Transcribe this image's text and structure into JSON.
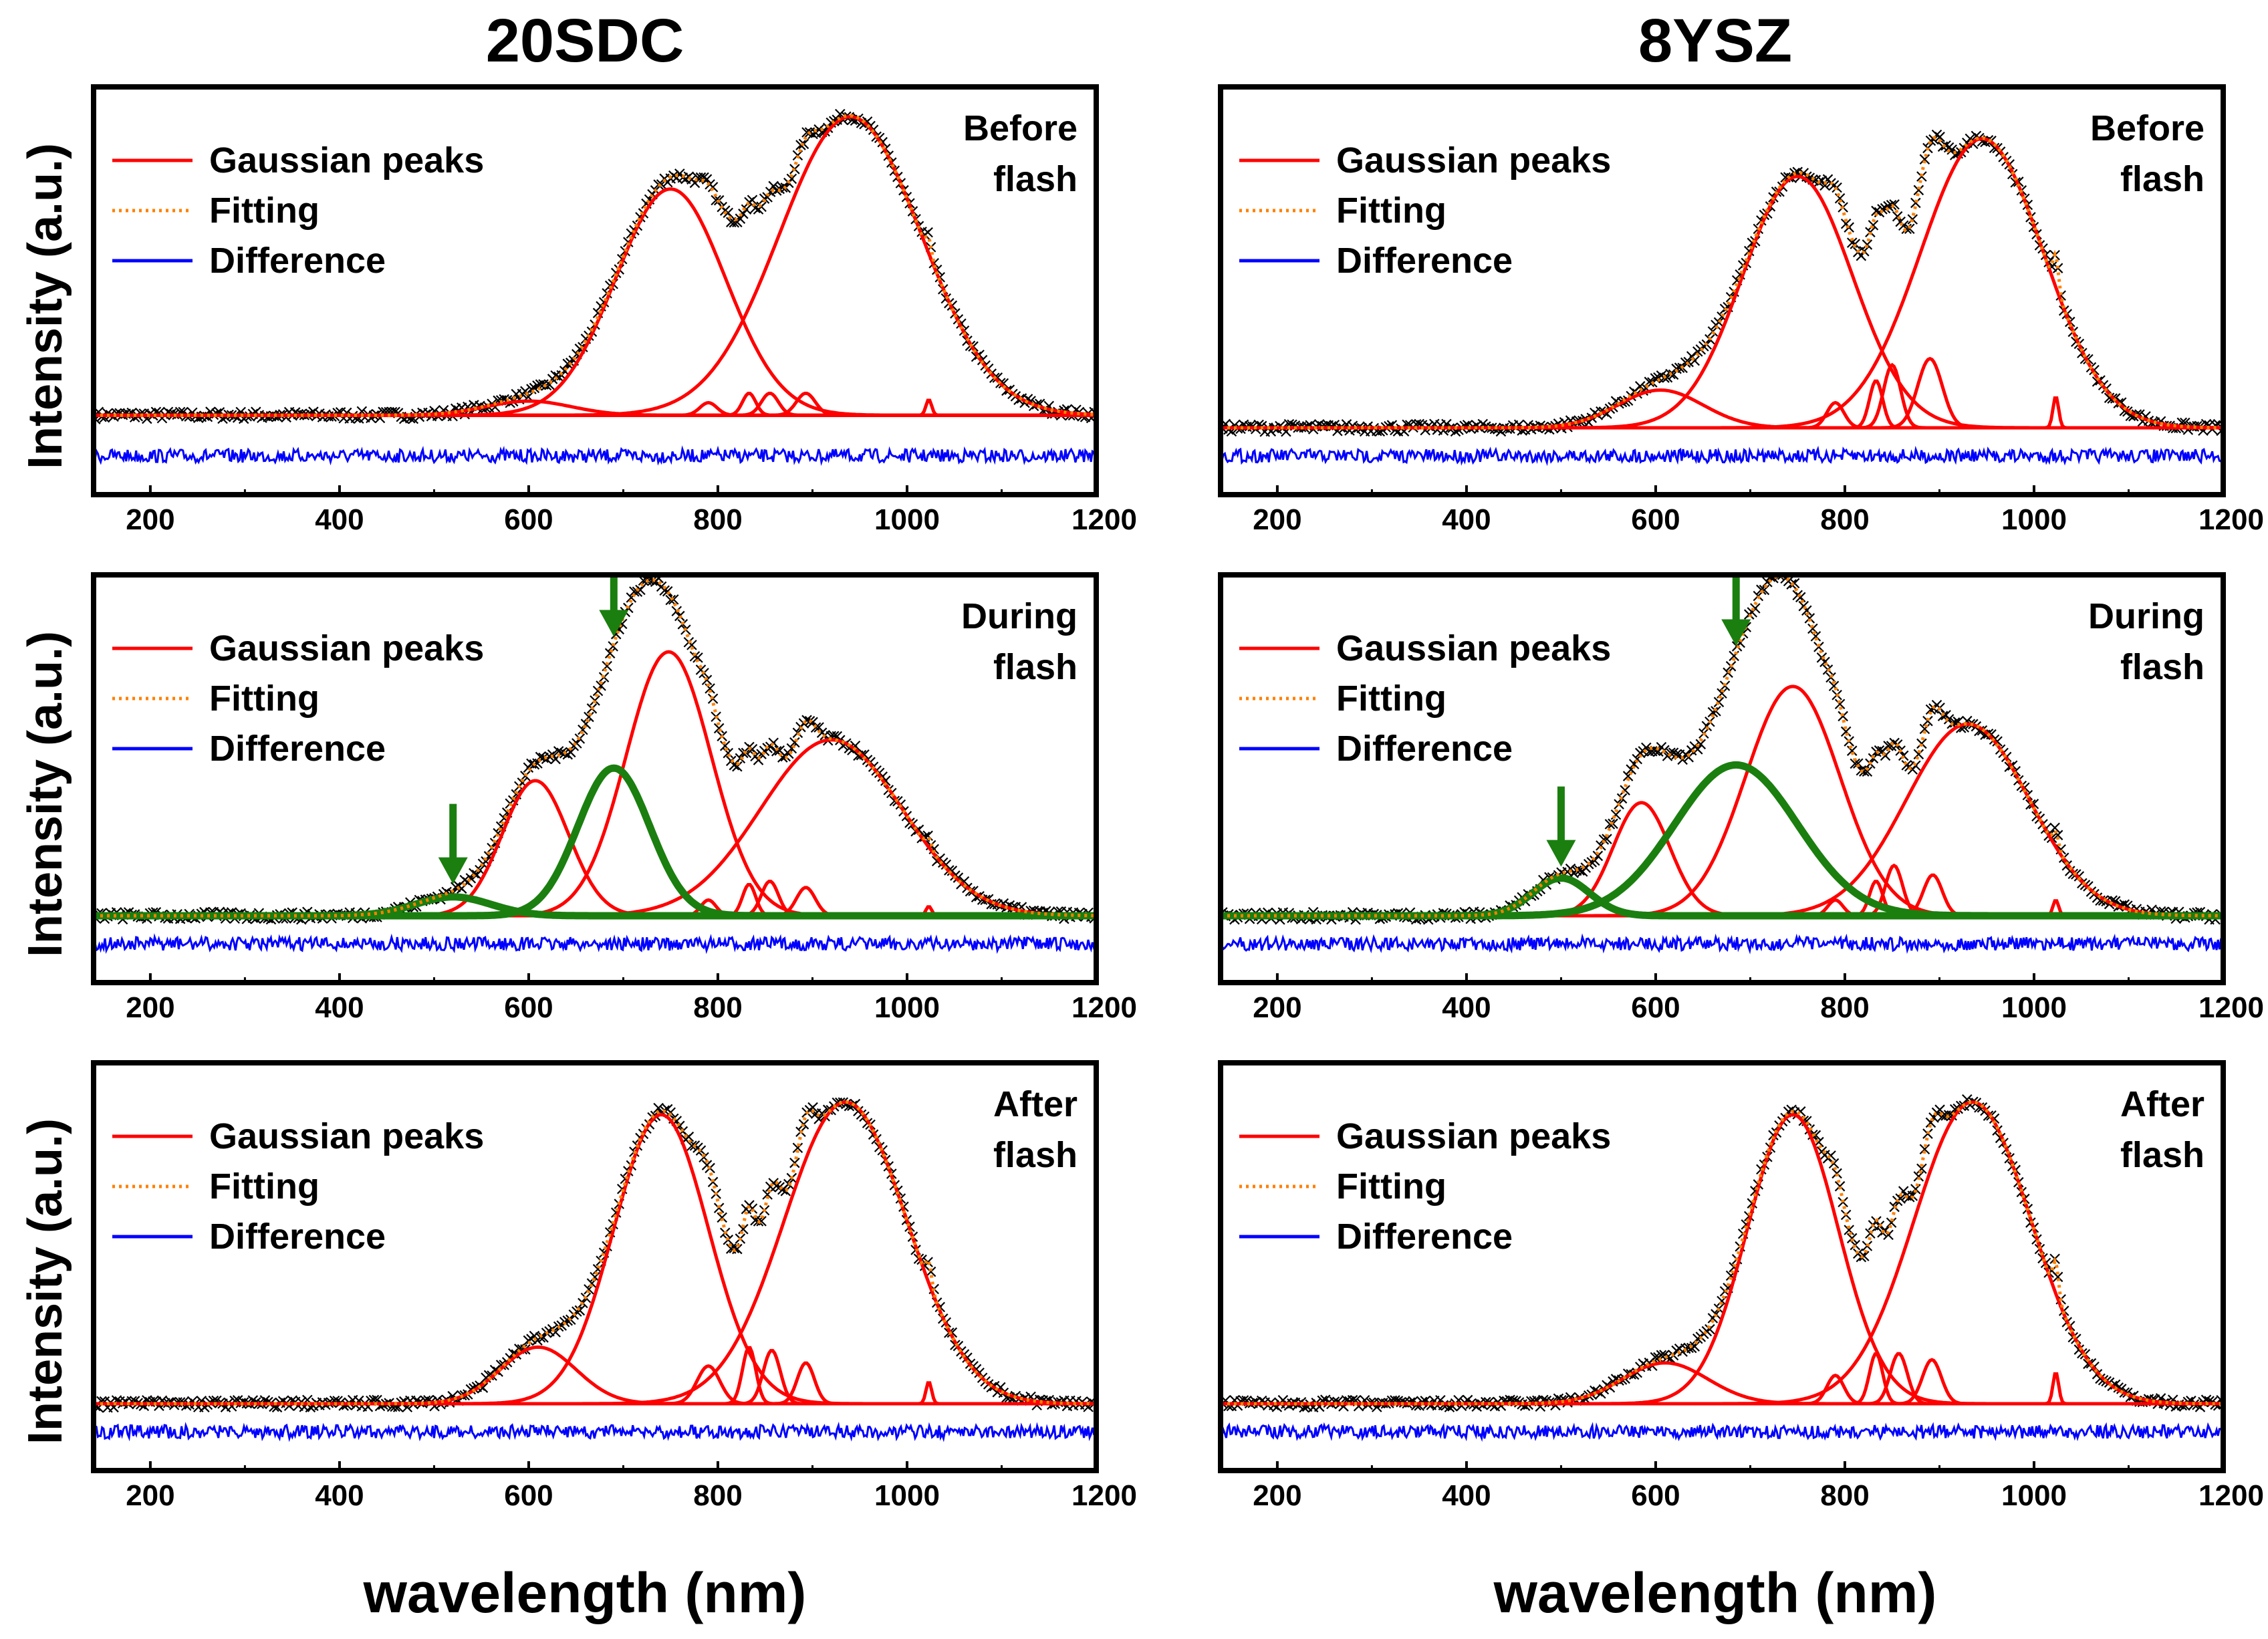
{
  "figure": {
    "column_titles": [
      "20SDC",
      "8YSZ"
    ],
    "y_axis_label": "Intensity (a.u.)",
    "x_axis_label": "wavelength (nm)"
  },
  "colors": {
    "gaussian": "#ff0000",
    "fitting": "#ff8000",
    "difference": "#0000ff",
    "highlight": "#1a7f0f",
    "marker": "#000000"
  },
  "chart_data": [
    {
      "type": "line",
      "title": "20SDC",
      "panel_label": [
        "Before",
        "flash"
      ],
      "xlabel": "wavelength (nm)",
      "ylabel": "Intensity (a.u.)",
      "xlim": [
        140,
        1200
      ],
      "xticks": [
        200,
        400,
        600,
        800,
        1000,
        1200
      ],
      "legend": [
        "Gaussian peaks",
        "Fitting",
        "Difference"
      ],
      "baseline": 0.04,
      "peaks": [
        [
          600,
          45,
          0.045
        ],
        [
          750,
          58,
          0.72
        ],
        [
          790,
          9,
          0.04
        ],
        [
          833,
          7,
          0.07
        ],
        [
          855,
          9,
          0.07
        ],
        [
          893,
          10,
          0.07
        ],
        [
          940,
          75,
          0.95
        ],
        [
          1023,
          3,
          0.05
        ]
      ],
      "highlight_peaks": []
    },
    {
      "type": "line",
      "title": "8YSZ",
      "panel_label": [
        "Before",
        "flash"
      ],
      "xlabel": "wavelength (nm)",
      "ylabel": "Intensity (a.u.)",
      "xlim": [
        140,
        1200
      ],
      "xticks": [
        200,
        400,
        600,
        800,
        1000,
        1200
      ],
      "legend": [
        "Gaussian peaks",
        "Fitting",
        "Difference"
      ],
      "baseline": 0.0,
      "peaks": [
        [
          605,
          45,
          0.12
        ],
        [
          750,
          58,
          0.8
        ],
        [
          790,
          9,
          0.08
        ],
        [
          833,
          7,
          0.15
        ],
        [
          850,
          9,
          0.2
        ],
        [
          890,
          13,
          0.22
        ],
        [
          945,
          65,
          0.92
        ],
        [
          1023,
          3,
          0.1
        ]
      ],
      "highlight_peaks": []
    },
    {
      "type": "line",
      "title": "20SDC",
      "panel_label": [
        "During",
        "flash"
      ],
      "xlabel": "wavelength (nm)",
      "ylabel": "Intensity (a.u.)",
      "xlim": [
        140,
        1200
      ],
      "xticks": [
        200,
        400,
        600,
        800,
        1000,
        1200
      ],
      "legend": [
        "Gaussian peaks",
        "Fitting",
        "Difference"
      ],
      "baseline": 0.0,
      "peaks": [
        [
          607,
          35,
          0.43
        ],
        [
          748,
          45,
          0.84
        ],
        [
          790,
          8,
          0.05
        ],
        [
          833,
          7,
          0.1
        ],
        [
          855,
          9,
          0.11
        ],
        [
          893,
          10,
          0.09
        ],
        [
          920,
          75,
          0.56
        ],
        [
          1023,
          3,
          0.03
        ]
      ],
      "highlight_peaks": [
        [
          690,
          38,
          0.47
        ],
        [
          520,
          40,
          0.06
        ]
      ],
      "arrows_at": [
        520,
        690
      ]
    },
    {
      "type": "line",
      "title": "8YSZ",
      "panel_label": [
        "During",
        "flash"
      ],
      "xlabel": "wavelength (nm)",
      "ylabel": "Intensity (a.u.)",
      "xlim": [
        140,
        1200
      ],
      "xticks": [
        200,
        400,
        600,
        800,
        1000,
        1200
      ],
      "legend": [
        "Gaussian peaks",
        "Fitting",
        "Difference"
      ],
      "baseline": 0.0,
      "peaks": [
        [
          585,
          30,
          0.36
        ],
        [
          745,
          50,
          0.73
        ],
        [
          790,
          8,
          0.05
        ],
        [
          833,
          7,
          0.11
        ],
        [
          852,
          9,
          0.16
        ],
        [
          893,
          10,
          0.13
        ],
        [
          930,
          65,
          0.61
        ],
        [
          1023,
          3,
          0.05
        ]
      ],
      "highlight_peaks": [
        [
          685,
          65,
          0.48
        ],
        [
          500,
          30,
          0.12
        ]
      ],
      "arrows_at": [
        500,
        685
      ]
    },
    {
      "type": "line",
      "title": "20SDC",
      "panel_label": [
        "After",
        "flash"
      ],
      "xlabel": "wavelength (nm)",
      "ylabel": "Intensity (a.u.)",
      "xlim": [
        140,
        1200
      ],
      "xticks": [
        200,
        400,
        600,
        800,
        1000,
        1200
      ],
      "legend": [
        "Gaussian peaks",
        "Fitting",
        "Difference"
      ],
      "baseline": 0.0,
      "peaks": [
        [
          610,
          40,
          0.18
        ],
        [
          740,
          50,
          0.92
        ],
        [
          790,
          12,
          0.12
        ],
        [
          833,
          7,
          0.18
        ],
        [
          857,
          9,
          0.17
        ],
        [
          893,
          9,
          0.13
        ],
        [
          935,
          65,
          0.96
        ],
        [
          1023,
          3,
          0.07
        ]
      ],
      "highlight_peaks": []
    },
    {
      "type": "line",
      "title": "8YSZ",
      "panel_label": [
        "After",
        "flash"
      ],
      "xlabel": "wavelength (nm)",
      "ylabel": "Intensity (a.u.)",
      "xlim": [
        140,
        1200
      ],
      "xticks": [
        200,
        400,
        600,
        800,
        1000,
        1200
      ],
      "legend": [
        "Gaussian peaks",
        "Fitting",
        "Difference"
      ],
      "baseline": 0.0,
      "peaks": [
        [
          610,
          45,
          0.13
        ],
        [
          745,
          48,
          0.92
        ],
        [
          790,
          9,
          0.09
        ],
        [
          833,
          7,
          0.16
        ],
        [
          857,
          9,
          0.16
        ],
        [
          892,
          10,
          0.14
        ],
        [
          935,
          62,
          0.96
        ],
        [
          1023,
          3,
          0.1
        ]
      ],
      "highlight_peaks": []
    }
  ]
}
